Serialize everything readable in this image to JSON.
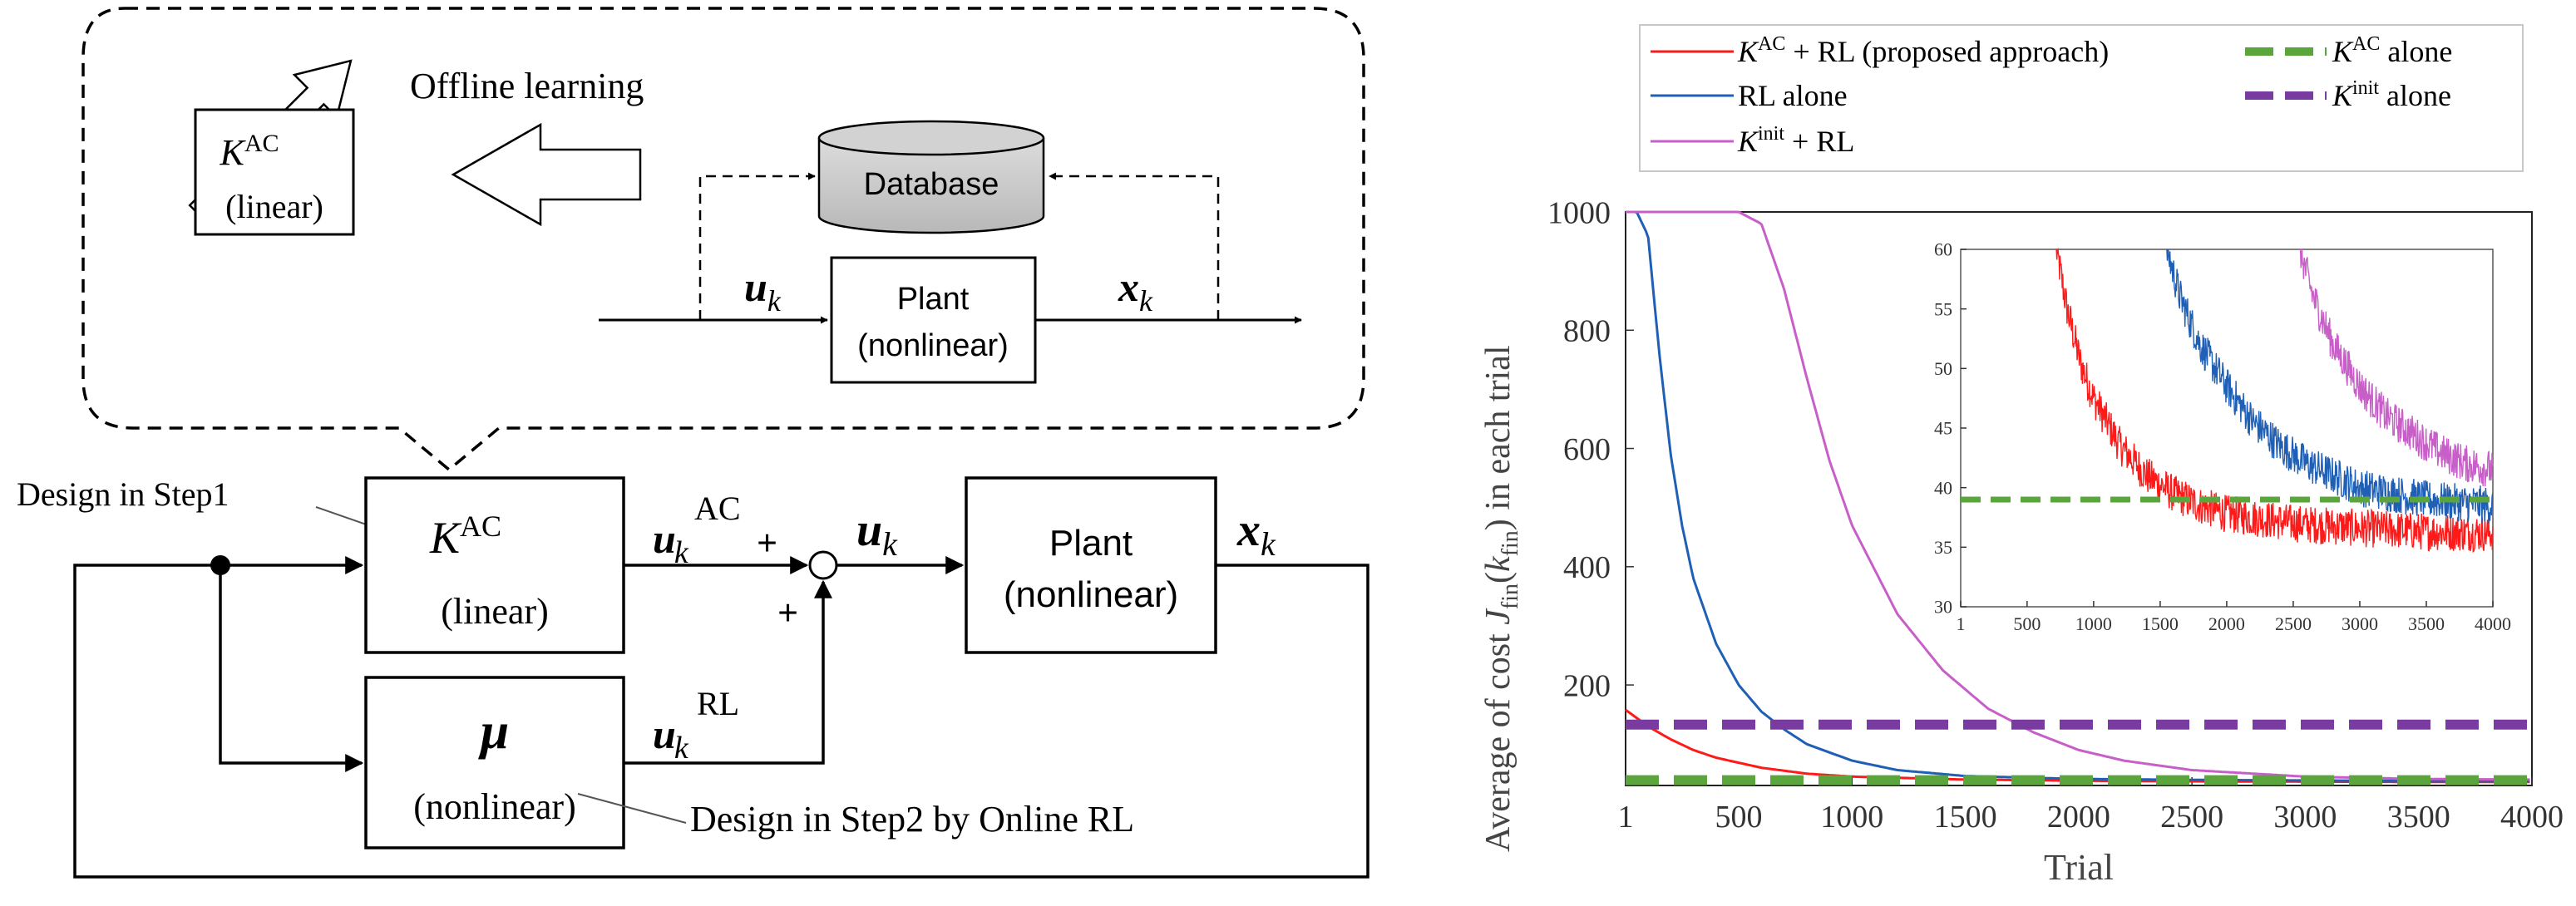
{
  "diagram": {
    "offline_learning": "Offline learning",
    "database": "Database",
    "plant_top_line1": "Plant",
    "plant_top_line2": "(nonlinear)",
    "k_ac_top_sym": "K",
    "k_ac_top_sup": "AC",
    "k_ac_top_label": "(linear)",
    "u_top_sym": "u",
    "u_top_sub": "k",
    "x_top_sym": "x",
    "x_top_sub": "k",
    "design_step1": "Design in Step1",
    "k_ac_sym": "K",
    "k_ac_sup": "AC",
    "k_ac_label": "(linear)",
    "u_ac_sym": "u",
    "u_ac_sub": "k",
    "u_ac_sup": "AC",
    "plus_top": "+",
    "plus_bottom": "+",
    "u_sym": "u",
    "u_sub": "k",
    "plant_line1": "Plant",
    "plant_line2": "(nonlinear)",
    "x_sym": "x",
    "x_sub": "k",
    "mu_sym": "μ",
    "mu_label": "(nonlinear)",
    "u_rl_sym": "u",
    "u_rl_sub": "k",
    "u_rl_sup": "RL",
    "design_step2": "Design in Step2 by Online RL"
  },
  "legend": {
    "entries": [
      {
        "sym": "K",
        "sup": "AC",
        "text": " + RL (proposed approach)"
      },
      {
        "sym": "",
        "sup": "",
        "text": "RL alone"
      },
      {
        "sym": "K",
        "sup": "init",
        "text": " + RL"
      },
      {
        "sym": "K",
        "sup": "AC",
        "text": " alone"
      },
      {
        "sym": "K",
        "sup": "init",
        "text": " alone"
      }
    ]
  },
  "axes": {
    "ylabel_prefix": "Average of cost ",
    "ylabel_J": "J",
    "ylabel_Jsub": "fin",
    "ylabel_k": "k",
    "ylabel_ksub": "fin",
    "ylabel_suffix": " in each trial",
    "xlabel": "Trial"
  },
  "chart_data": [
    {
      "type": "line",
      "title": "",
      "xlabel": "Trial",
      "ylabel": "Average of cost J_fin(k_fin) in each trial",
      "xlim": [
        1,
        4000
      ],
      "ylim": [
        30,
        1000
      ],
      "xticks": [
        "1",
        "500",
        "1000",
        "1500",
        "2000",
        "2500",
        "3000",
        "3500",
        "4000"
      ],
      "yticks": [
        "200",
        "400",
        "600",
        "800",
        "1000"
      ],
      "grid": false,
      "legend_position": "top",
      "series": [
        {
          "name": "K^AC + RL (proposed approach)",
          "color": "#ff1a1a",
          "style": "solid",
          "x": [
            1,
            100,
            200,
            300,
            400,
            600,
            800,
            1000,
            1500,
            2000,
            2500,
            3000,
            3500,
            4000
          ],
          "y": [
            158,
            130,
            108,
            90,
            77,
            60,
            50,
            45,
            40,
            38,
            37,
            36.5,
            36,
            36
          ]
        },
        {
          "name": "RL alone",
          "color": "#1f5fb5",
          "style": "solid",
          "x": [
            1,
            50,
            100,
            150,
            200,
            250,
            300,
            400,
            500,
            600,
            700,
            800,
            1000,
            1200,
            1500,
            2000,
            2500,
            3000,
            3500,
            4000
          ],
          "y": [
            1000,
            1000,
            960,
            760,
            590,
            470,
            380,
            270,
            200,
            155,
            125,
            100,
            72,
            56,
            46,
            41,
            39.5,
            38.5,
            38,
            38
          ]
        },
        {
          "name": "K^init + RL",
          "color": "#c85ec8",
          "style": "solid",
          "x": [
            1,
            300,
            500,
            600,
            700,
            800,
            900,
            1000,
            1200,
            1400,
            1600,
            1800,
            2000,
            2200,
            2500,
            3000,
            3500,
            4000
          ],
          "y": [
            1000,
            1000,
            1000,
            980,
            870,
            720,
            580,
            470,
            320,
            225,
            160,
            120,
            90,
            72,
            56,
            45,
            41,
            40
          ]
        },
        {
          "name": "K^AC alone",
          "color": "#5aa53c",
          "style": "dashed",
          "x": [
            1,
            4000
          ],
          "y": [
            39,
            39
          ]
        },
        {
          "name": "K^init alone",
          "color": "#7a3ba0",
          "style": "dashed",
          "x": [
            1,
            4000
          ],
          "y": [
            133,
            133
          ]
        }
      ]
    },
    {
      "type": "line",
      "title": "",
      "xlabel": "",
      "ylabel": "",
      "xlim": [
        1,
        4000
      ],
      "ylim": [
        30,
        60
      ],
      "xticks": [
        "1",
        "500",
        "1000",
        "1500",
        "2000",
        "2500",
        "3000",
        "3500",
        "4000"
      ],
      "yticks": [
        "30",
        "35",
        "40",
        "45",
        "50",
        "55",
        "60"
      ],
      "grid": false,
      "series": [
        {
          "name": "K^AC + RL (proposed approach)",
          "color": "#ff1a1a",
          "style": "noisy",
          "x": [
            720,
            800,
            900,
            1000,
            1200,
            1400,
            1600,
            1800,
            2000,
            2500,
            3000,
            3500,
            4000
          ],
          "y": [
            60,
            55,
            50.5,
            47.5,
            43.5,
            41,
            39.5,
            38.5,
            37.8,
            37,
            36.6,
            36.3,
            36.2
          ]
        },
        {
          "name": "RL alone",
          "color": "#1f5fb5",
          "style": "noisy",
          "x": [
            1550,
            1650,
            1800,
            2000,
            2200,
            2400,
            2600,
            2800,
            3000,
            3500,
            4000
          ],
          "y": [
            60,
            56,
            52,
            48.5,
            45.5,
            43.5,
            42,
            41,
            40,
            39,
            38.5
          ]
        },
        {
          "name": "K^init + RL",
          "color": "#c85ec8",
          "style": "noisy",
          "x": [
            2550,
            2650,
            2800,
            3000,
            3200,
            3400,
            3600,
            3800,
            4000
          ],
          "y": [
            60,
            56,
            52,
            48.5,
            46,
            44.5,
            43,
            42,
            41.5
          ]
        },
        {
          "name": "K^AC alone",
          "color": "#5aa53c",
          "style": "dashed",
          "x": [
            1,
            4000
          ],
          "y": [
            39,
            39
          ]
        }
      ]
    }
  ]
}
